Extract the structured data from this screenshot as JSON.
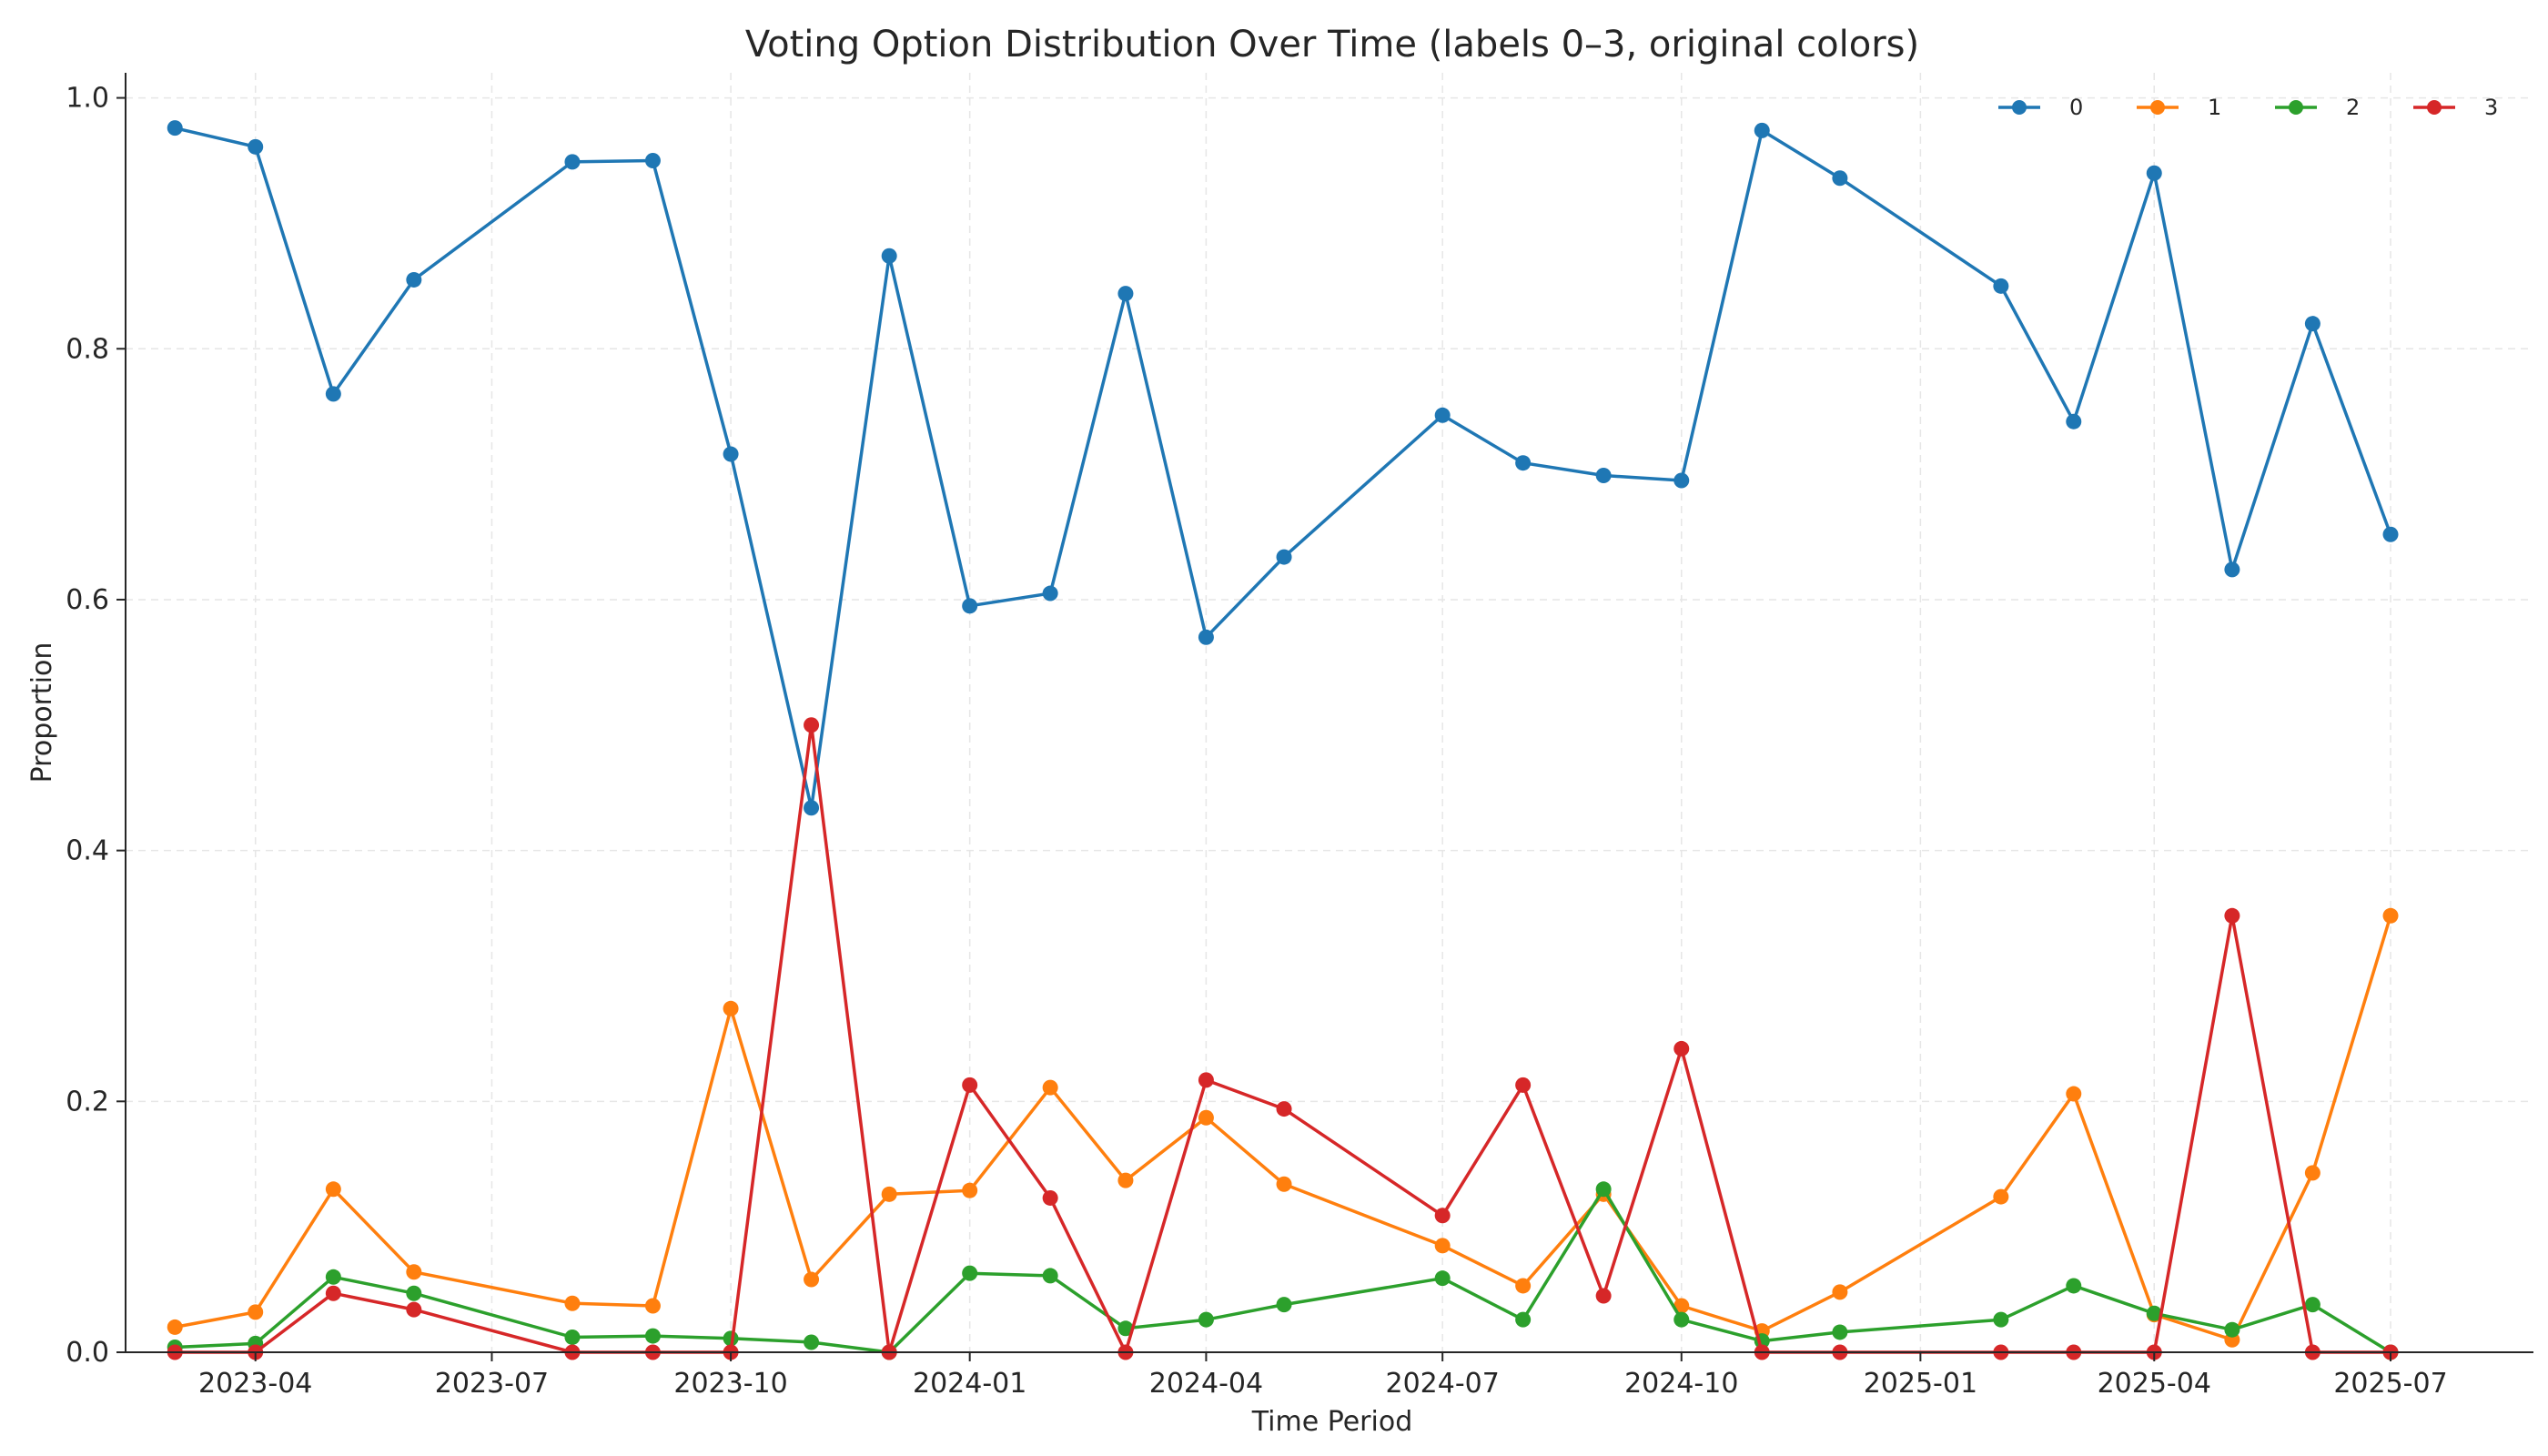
{
  "chart_data": {
    "type": "line",
    "title": "Voting Option Distribution Over Time (labels 0–3, original colors)",
    "xlabel": "Time Period",
    "ylabel": "Proportion",
    "ylim": [
      0,
      1.02
    ],
    "yticks": [
      0.0,
      0.2,
      0.4,
      0.6,
      0.8,
      1.0
    ],
    "ytick_labels": [
      "0.0",
      "0.2",
      "0.4",
      "0.6",
      "0.8",
      "1.0"
    ],
    "xlim": [
      "2023-02-10",
      "2025-08-25"
    ],
    "xticks": [
      "2023-04-01",
      "2023-07-01",
      "2023-10-01",
      "2024-01-01",
      "2024-04-01",
      "2024-07-01",
      "2024-10-01",
      "2025-01-01",
      "2025-04-01",
      "2025-07-01"
    ],
    "xtick_labels": [
      "2023-04",
      "2023-07",
      "2023-10",
      "2024-01",
      "2024-04",
      "2024-07",
      "2024-10",
      "2025-01",
      "2025-04",
      "2025-07"
    ],
    "grid": true,
    "legend_position": "top-right",
    "x": [
      "2023-03-01",
      "2023-04-01",
      "2023-05-01",
      "2023-06-01",
      "2023-08-01",
      "2023-09-01",
      "2023-10-01",
      "2023-11-01",
      "2023-12-01",
      "2024-01-01",
      "2024-02-01",
      "2024-03-01",
      "2024-04-01",
      "2024-05-01",
      "2024-07-01",
      "2024-08-01",
      "2024-09-01",
      "2024-10-01",
      "2024-11-01",
      "2024-12-01",
      "2025-02-01",
      "2025-03-01",
      "2025-04-01",
      "2025-05-01",
      "2025-06-01",
      "2025-07-01"
    ],
    "series": [
      {
        "name": "0",
        "color": "#1f77b4",
        "values": [
          0.976,
          0.961,
          0.764,
          0.855,
          0.949,
          0.95,
          0.716,
          0.434,
          0.874,
          0.595,
          0.605,
          0.844,
          0.57,
          0.634,
          0.747,
          0.709,
          0.699,
          0.695,
          0.974,
          0.936,
          0.85,
          0.742,
          0.94,
          0.624,
          0.82,
          0.652
        ]
      },
      {
        "name": "1",
        "color": "#ff7f0e",
        "values": [
          0.02,
          0.032,
          0.13,
          0.064,
          0.039,
          0.037,
          0.274,
          0.058,
          0.126,
          0.129,
          0.211,
          0.137,
          0.187,
          0.134,
          0.085,
          0.053,
          0.126,
          0.037,
          0.017,
          0.048,
          0.124,
          0.206,
          0.03,
          0.01,
          0.143,
          0.348
        ]
      },
      {
        "name": "2",
        "color": "#2ca02c",
        "values": [
          0.004,
          0.007,
          0.06,
          0.047,
          0.012,
          0.013,
          0.011,
          0.008,
          0.0,
          0.063,
          0.061,
          0.019,
          0.026,
          0.038,
          0.059,
          0.026,
          0.13,
          0.026,
          0.009,
          0.016,
          0.026,
          0.053,
          0.031,
          0.018,
          0.038,
          0.0
        ]
      },
      {
        "name": "3",
        "color": "#d62728",
        "values": [
          0.0,
          0.0,
          0.047,
          0.034,
          0.0,
          0.0,
          0.0,
          0.5,
          0.0,
          0.213,
          0.123,
          0.0,
          0.217,
          0.194,
          0.109,
          0.213,
          0.045,
          0.242,
          0.0,
          0.0,
          0.0,
          0.0,
          0.0,
          0.348,
          0.0,
          0.0
        ]
      }
    ]
  }
}
